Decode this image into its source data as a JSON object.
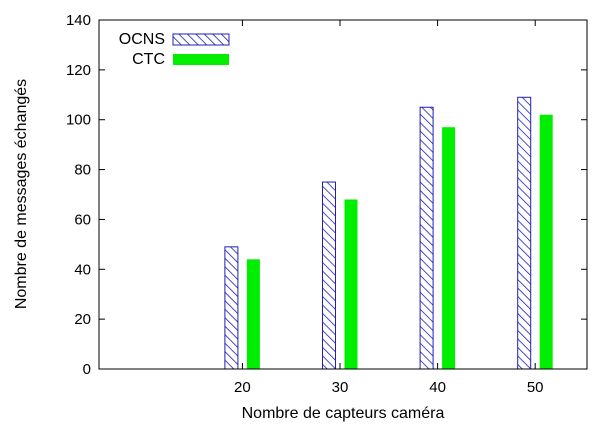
{
  "chart_data": {
    "type": "bar",
    "categories": [
      "20",
      "30",
      "40",
      "50"
    ],
    "series": [
      {
        "name": "OCNS",
        "values": [
          49,
          75,
          105,
          109
        ],
        "color": "#1f1fb4",
        "pattern": "diagonal-hatch"
      },
      {
        "name": "CTC",
        "values": [
          44,
          68,
          97,
          102
        ],
        "color": "#00ee00",
        "pattern": "solid"
      }
    ],
    "xlabel": "Nombre de capteurs caméra",
    "ylabel": "Nombre de messages échangés",
    "ylim": [
      0,
      140
    ],
    "yticks": [
      0,
      20,
      40,
      60,
      80,
      100,
      120,
      140
    ],
    "grid": false,
    "legend": "top-left"
  }
}
